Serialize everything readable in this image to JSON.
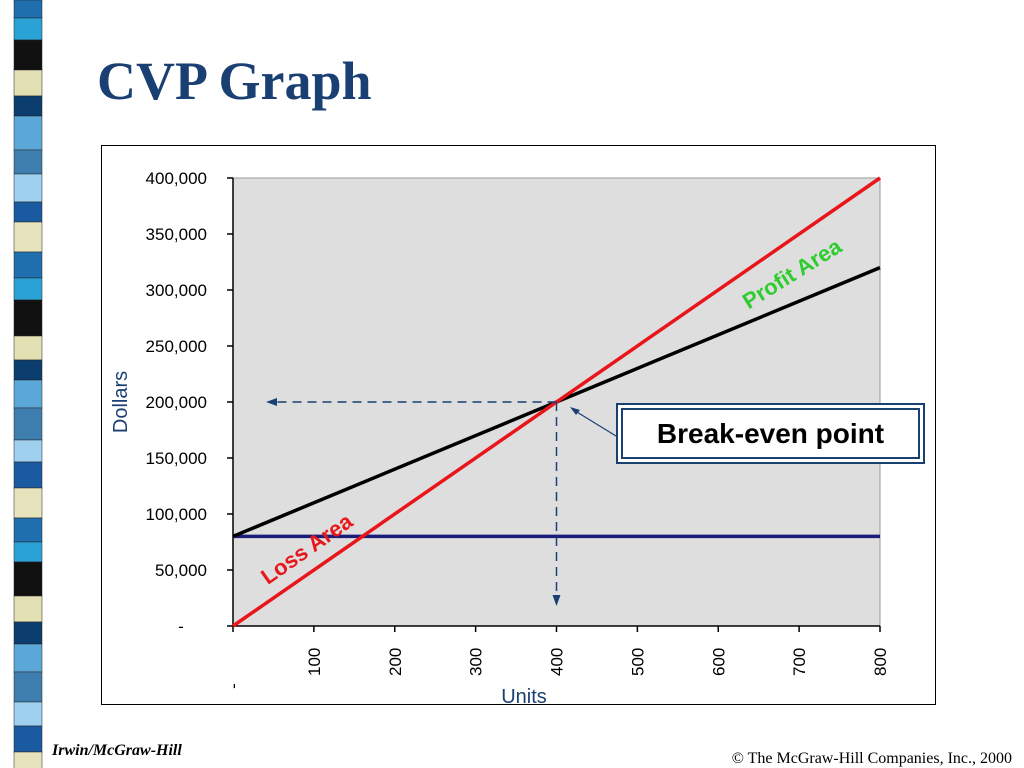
{
  "slide": {
    "title": "CVP Graph",
    "footer_left": "Irwin/McGraw-Hill",
    "footer_right": "© The McGraw-Hill Companies, Inc., 2000"
  },
  "annotations": {
    "break_even_label": "Break-even point",
    "profit_area": "Profit Area",
    "loss_area": "Loss Area"
  },
  "colors": {
    "title": "#1a3f72",
    "sales_line": "#e8161b",
    "total_cost_line": "#000000",
    "fixed_cost_line": "#1c1c7a",
    "profit_text": "#2fcc2f",
    "loss_text": "#e8161b",
    "plot_bg": "#dedede",
    "guide_lines": "#1a3f72"
  },
  "chart_data": {
    "type": "line",
    "xlabel": "Units",
    "ylabel": "Dollars",
    "xlim": [
      0,
      800
    ],
    "ylim": [
      0,
      400000
    ],
    "x_ticks": [
      "-",
      "100",
      "200",
      "300",
      "400",
      "500",
      "600",
      "700",
      "800"
    ],
    "y_ticks": [
      "-",
      "50,000",
      "100,000",
      "150,000",
      "200,000",
      "250,000",
      "300,000",
      "350,000",
      "400,000"
    ],
    "series": [
      {
        "x": [
          0,
          800
        ],
        "y": [
          0,
          400000
        ],
        "color": "#e8161b"
      },
      {
        "x": [
          0,
          800
        ],
        "y": [
          80000,
          320000
        ],
        "color": "#000000"
      },
      {
        "x": [
          0,
          800
        ],
        "y": [
          80000,
          80000
        ],
        "color": "#1c1c7a"
      }
    ],
    "break_even": {
      "units": 400,
      "dollars": 200000
    },
    "grid": false
  }
}
